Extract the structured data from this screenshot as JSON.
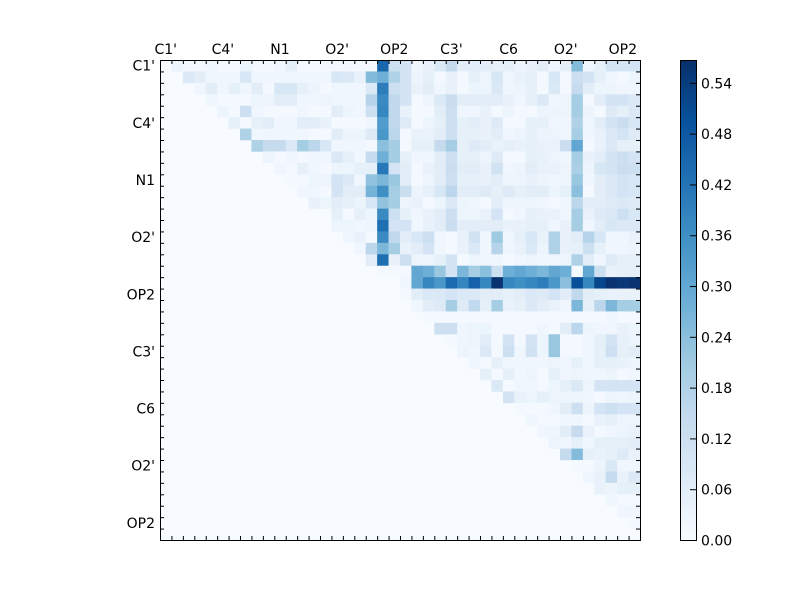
{
  "chart_data": {
    "type": "heatmap",
    "title": "",
    "xlabel": "",
    "ylabel": "",
    "colormap": "Blues",
    "colors": {
      "low": "#f7fbff",
      "high": "#08306b"
    },
    "value_range": [
      0,
      0.567
    ],
    "n_rows": 42,
    "n_cols": 42,
    "x_tick_labels": [
      "C1'",
      "C4'",
      "N1",
      "O2'",
      "OP2",
      "C3'",
      "C6",
      "O2'",
      "OP2"
    ],
    "y_tick_labels": [
      "C1'",
      "C4'",
      "N1",
      "O2'",
      "OP2",
      "C3'",
      "C6",
      "O2'",
      "OP2"
    ],
    "tick_label_every": 5,
    "x_axis_position": "top",
    "grid": false,
    "colorbar": {
      "position": "right",
      "ticks": [
        "0.00",
        "0.06",
        "0.12",
        "0.18",
        "0.24",
        "0.30",
        "0.36",
        "0.42",
        "0.48",
        "0.54"
      ]
    },
    "upper_triangle_note_free": true,
    "values_upper": [
      [
        0.03,
        0.01,
        0.01,
        0.02,
        0.01,
        0.01,
        0.03,
        0.01,
        0.01,
        0.02,
        0.05,
        0.01,
        0.01,
        0.01,
        0.01,
        0.01,
        0.01,
        0.01,
        0.45,
        0.12,
        0.1,
        0.02,
        0.04,
        0.08,
        0.14,
        0.06,
        0.06,
        0.06,
        0.05,
        0.05,
        0.03,
        0.04,
        0.06,
        0.02,
        0.05,
        0.25,
        0.02,
        0.05,
        0.1,
        0.1,
        0.1
      ],
      [
        0.08,
        0.06,
        0.02,
        0.02,
        0.02,
        0.09,
        0.02,
        0.02,
        0.02,
        0.02,
        0.02,
        0.02,
        0.02,
        0.09,
        0.08,
        0.04,
        0.25,
        0.28,
        0.18,
        0.1,
        0.03,
        0.05,
        0.01,
        0.04,
        0.01,
        0.05,
        0.03,
        0.09,
        0.02,
        0.04,
        0.05,
        0.01,
        0.09,
        0.01,
        0.12,
        0.1,
        0.05,
        0.02,
        0.01,
        0.03
      ],
      [
        0.02,
        0.06,
        0.02,
        0.05,
        0.02,
        0.06,
        0.01,
        0.09,
        0.09,
        0.05,
        0.03,
        0.01,
        0.02,
        0.02,
        0.02,
        0.08,
        0.4,
        0.12,
        0.1,
        0.04,
        0.06,
        0.02,
        0.04,
        0.01,
        0.03,
        0.03,
        0.08,
        0.02,
        0.03,
        0.05,
        0.01,
        0.08,
        0.01,
        0.14,
        0.06,
        0.03,
        0.03,
        0.02,
        0.02
      ],
      [
        0.02,
        0.01,
        0.01,
        0.01,
        0.03,
        0.03,
        0.06,
        0.06,
        0.02,
        0.02,
        0.03,
        0.02,
        0.02,
        0.02,
        0.17,
        0.37,
        0.15,
        0.1,
        0.01,
        0.03,
        0.08,
        0.13,
        0.06,
        0.06,
        0.06,
        0.06,
        0.04,
        0.02,
        0.05,
        0.08,
        0.02,
        0.03,
        0.2,
        0.01,
        0.06,
        0.1,
        0.1,
        0.08
      ],
      [
        0.03,
        0.01,
        0.12,
        0.02,
        0.01,
        0.01,
        0.01,
        0.02,
        0.01,
        0.01,
        0.06,
        0.03,
        0.02,
        0.12,
        0.38,
        0.15,
        0.04,
        0.01,
        0.01,
        0.06,
        0.12,
        0.02,
        0.02,
        0.04,
        0.01,
        0.03,
        0.01,
        0.01,
        0.03,
        0.03,
        0.03,
        0.2,
        0.03,
        0.01,
        0.07,
        0.05,
        0.08
      ],
      [
        0.05,
        0.01,
        0.05,
        0.06,
        0.02,
        0.02,
        0.06,
        0.06,
        0.04,
        0.01,
        0.01,
        0.01,
        0.02,
        0.33,
        0.15,
        0.07,
        0.01,
        0.03,
        0.05,
        0.12,
        0.05,
        0.06,
        0.04,
        0.07,
        0.01,
        0.01,
        0.05,
        0.05,
        0.02,
        0.02,
        0.18,
        0.02,
        0.06,
        0.1,
        0.13,
        0.09
      ],
      [
        0.18,
        0.02,
        0.02,
        0.02,
        0.02,
        0.02,
        0.01,
        0.01,
        0.06,
        0.03,
        0.03,
        0.07,
        0.34,
        0.16,
        0.01,
        0.04,
        0.04,
        0.06,
        0.12,
        0.05,
        0.05,
        0.04,
        0.06,
        0.02,
        0.03,
        0.05,
        0.03,
        0.03,
        0.02,
        0.2,
        0.02,
        0.04,
        0.08,
        0.1,
        0.07
      ],
      [
        0.18,
        0.14,
        0.14,
        0.08,
        0.2,
        0.16,
        0.09,
        0.02,
        0.02,
        0.02,
        0.01,
        0.24,
        0.2,
        0.01,
        0.05,
        0.05,
        0.14,
        0.2,
        0.05,
        0.07,
        0.06,
        0.04,
        0.05,
        0.04,
        0.05,
        0.04,
        0.04,
        0.13,
        0.3,
        0.01,
        0.04,
        0.08,
        0.05,
        0.05
      ],
      [
        0.03,
        0.01,
        0.02,
        0.01,
        0.02,
        0.02,
        0.08,
        0.05,
        0.02,
        0.14,
        0.28,
        0.2,
        0.05,
        0.02,
        0.02,
        0.06,
        0.12,
        0.05,
        0.05,
        0.03,
        0.07,
        0.01,
        0.01,
        0.05,
        0.04,
        0.03,
        0.02,
        0.2,
        0.04,
        0.06,
        0.1,
        0.12,
        0.1
      ],
      [
        0.02,
        0.01,
        0.05,
        0.02,
        0.01,
        0.03,
        0.03,
        0.05,
        0.05,
        0.41,
        0.1,
        0.06,
        0.01,
        0.04,
        0.06,
        0.13,
        0.06,
        0.06,
        0.04,
        0.11,
        0.02,
        0.03,
        0.06,
        0.04,
        0.04,
        0.03,
        0.19,
        0.03,
        0.09,
        0.1,
        0.13,
        0.12
      ],
      [
        0.01,
        0.01,
        0.03,
        0.03,
        0.1,
        0.08,
        0.02,
        0.23,
        0.26,
        0.22,
        0.06,
        0.01,
        0.03,
        0.06,
        0.12,
        0.05,
        0.05,
        0.04,
        0.06,
        0.03,
        0.03,
        0.04,
        0.03,
        0.02,
        0.03,
        0.22,
        0.02,
        0.06,
        0.08,
        0.1,
        0.09
      ],
      [
        0.02,
        0.02,
        0.01,
        0.1,
        0.06,
        0.06,
        0.27,
        0.36,
        0.2,
        0.13,
        0.03,
        0.05,
        0.09,
        0.16,
        0.06,
        0.06,
        0.07,
        0.05,
        0.07,
        0.05,
        0.06,
        0.06,
        0.03,
        0.05,
        0.24,
        0.01,
        0.06,
        0.08,
        0.1,
        0.09
      ],
      [
        0.04,
        0.03,
        0.06,
        0.05,
        0.03,
        0.09,
        0.23,
        0.2,
        0.03,
        0.04,
        0.01,
        0.03,
        0.08,
        0.03,
        0.02,
        0.01,
        0.06,
        0.03,
        0.03,
        0.03,
        0.02,
        0.01,
        0.02,
        0.16,
        0.06,
        0.06,
        0.07,
        0.08,
        0.07
      ],
      [
        0,
        0.05,
        0.01,
        0.05,
        0.03,
        0.37,
        0.12,
        0.05,
        0.02,
        0.04,
        0.06,
        0.12,
        0.03,
        0.03,
        0.04,
        0.1,
        0.01,
        0.02,
        0.05,
        0.04,
        0.04,
        0.02,
        0.2,
        0.04,
        0.07,
        0.08,
        0.12,
        0.09
      ],
      [
        0.03,
        0.03,
        0.02,
        0.03,
        0.43,
        0.1,
        0.1,
        0.02,
        0.04,
        0.06,
        0.13,
        0.06,
        0.06,
        0.06,
        0.06,
        0.04,
        0.04,
        0.05,
        0.05,
        0.02,
        0.04,
        0.2,
        0.02,
        0.06,
        0.09,
        0.08,
        0.08
      ],
      [
        0.02,
        0.04,
        0.01,
        0.37,
        0.15,
        0.06,
        0.09,
        0.12,
        0.02,
        0.01,
        0.04,
        0.11,
        0.02,
        0.21,
        0.02,
        0.05,
        0.09,
        0.04,
        0.18,
        0.04,
        0.06,
        0.17,
        0.09,
        0.02,
        0.02,
        0.04
      ],
      [
        0.02,
        0.16,
        0.26,
        0.2,
        0.04,
        0.06,
        0.1,
        0.02,
        0.01,
        0.04,
        0.08,
        0.02,
        0.17,
        0.02,
        0.04,
        0.08,
        0.03,
        0.18,
        0.04,
        0.05,
        0.12,
        0.05,
        0.02,
        0.02,
        0.03
      ],
      [
        0.06,
        0.43,
        0.04,
        0.12,
        0.03,
        0.03,
        0.05,
        0.1,
        0.01,
        0.03,
        0.02,
        0.02,
        0.01,
        0.02,
        0.03,
        0.02,
        0.02,
        0.03,
        0.18,
        0.06,
        0.02,
        0.07,
        0.05,
        0.05
      ],
      [
        0.01,
        0.01,
        0.01,
        0.3,
        0.28,
        0.22,
        0.1,
        0.26,
        0.2,
        0.24,
        0.12,
        0.28,
        0.3,
        0.28,
        0.26,
        0.3,
        0.28,
        0.01,
        0.3,
        0.12,
        0.04,
        0.05,
        0.05
      ],
      [
        0,
        0.02,
        0.3,
        0.38,
        0.34,
        0.44,
        0.38,
        0.46,
        0.38,
        0.56,
        0.38,
        0.36,
        0.38,
        0.4,
        0.34,
        0.24,
        0.5,
        0.38,
        0.52,
        0.56,
        0.55,
        0.56
      ],
      [
        0.01,
        0.06,
        0.08,
        0.08,
        0.1,
        0.08,
        0.08,
        0.06,
        0.06,
        0.05,
        0.06,
        0.08,
        0.07,
        0.1,
        0.06,
        0.15,
        0.06,
        0.05,
        0.04,
        0.04,
        0.04
      ],
      [
        0.02,
        0.06,
        0.07,
        0.2,
        0.07,
        0.15,
        0.05,
        0.2,
        0.04,
        0.05,
        0.08,
        0.06,
        0.04,
        0.02,
        0.26,
        0.05,
        0.16,
        0.26,
        0.2,
        0.2
      ],
      [
        0.01,
        0.01,
        0.01,
        0.01,
        0.01,
        0.01,
        0.01,
        0.01,
        0.01,
        0.01,
        0.01,
        0.01,
        0.01,
        0.01,
        0.01,
        0.01,
        0.02,
        0.01,
        0.01
      ],
      [
        0.12,
        0.12,
        0.02,
        0.03,
        0.03,
        0.01,
        0.01,
        0.01,
        0.01,
        0.02,
        0.01,
        0.06,
        0.16,
        0.03,
        0.02,
        0.02,
        0.04,
        0.03
      ],
      [
        0.01,
        0.02,
        0.03,
        0.06,
        0.01,
        0.1,
        0.01,
        0.1,
        0.03,
        0.22,
        0.01,
        0.01,
        0.02,
        0.05,
        0.1,
        0.05,
        0.03
      ],
      [
        0.03,
        0.02,
        0.08,
        0.01,
        0.12,
        0.02,
        0.11,
        0.03,
        0.22,
        0.01,
        0.01,
        0.02,
        0.05,
        0.12,
        0.05,
        0.06
      ],
      [
        0.02,
        0.01,
        0.05,
        0.02,
        0.02,
        0.02,
        0.02,
        0.03,
        0.02,
        0.05,
        0.02,
        0.05,
        0.05,
        0.04,
        0.03
      ],
      [
        0.05,
        0.01,
        0.05,
        0.02,
        0.03,
        0.01,
        0.05,
        0.02,
        0.03,
        0.02,
        0.02,
        0.03,
        0.01,
        0.02
      ],
      [
        0.08,
        0.01,
        0.02,
        0.02,
        0.01,
        0.03,
        0.05,
        0.08,
        0.03,
        0.1,
        0.1,
        0.1,
        0.1
      ],
      [
        0.1,
        0.04,
        0.03,
        0.05,
        0.03,
        0.03,
        0.03,
        0.02,
        0.01,
        0.03,
        0.02,
        0.03
      ],
      [
        0.01,
        0.01,
        0.01,
        0.02,
        0.06,
        0.12,
        0.03,
        0.1,
        0.12,
        0.1,
        0.1
      ],
      [
        0.02,
        0.01,
        0.01,
        0.02,
        0.02,
        0.01,
        0.04,
        0.05,
        0.03,
        0.03
      ],
      [
        0.02,
        0.02,
        0.06,
        0.14,
        0.04,
        0.01,
        0.02,
        0.03,
        0.04
      ],
      [
        0.03,
        0.02,
        0.05,
        0.02,
        0.05,
        0.05,
        0.05,
        0.06
      ],
      [
        0.14,
        0.25,
        0.05,
        0.04,
        0.05,
        0.07,
        0.04
      ],
      [
        0.01,
        0.01,
        0.03,
        0.08,
        0.02,
        0.02
      ],
      [
        0.02,
        0.04,
        0.14,
        0.04,
        0.08
      ],
      [
        0.04,
        0.03,
        0.05,
        0.05
      ],
      [
        0.02,
        0.01,
        0.01
      ],
      [
        0.02,
        0.02
      ],
      [
        0.01
      ],
      []
    ]
  }
}
